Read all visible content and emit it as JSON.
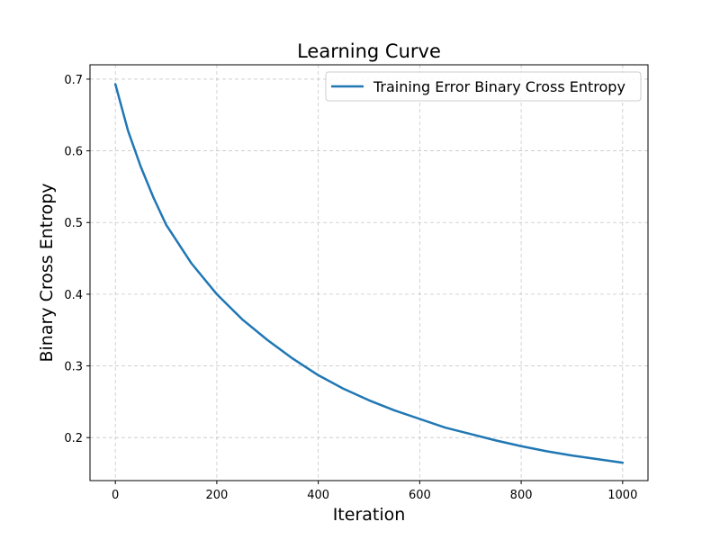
{
  "chart_data": {
    "type": "line",
    "title": "Learning Curve",
    "xlabel": "Iteration",
    "ylabel": "Binary Cross Entropy",
    "xlim": [
      -50,
      1050
    ],
    "ylim": [
      0.14,
      0.72
    ],
    "xticks": [
      0,
      200,
      400,
      600,
      800,
      1000
    ],
    "xtick_labels": [
      "0",
      "200",
      "400",
      "600",
      "800",
      "1000"
    ],
    "yticks": [
      0.2,
      0.3,
      0.4,
      0.5,
      0.6,
      0.7
    ],
    "ytick_labels": [
      "0.2",
      "0.3",
      "0.4",
      "0.5",
      "0.6",
      "0.7"
    ],
    "grid": true,
    "legend_position": "top-right",
    "series": [
      {
        "name": "Training Error Binary Cross Entropy",
        "color": "#1f77b4",
        "x": [
          0,
          25,
          50,
          75,
          100,
          150,
          200,
          250,
          300,
          350,
          400,
          450,
          500,
          550,
          600,
          650,
          700,
          750,
          800,
          850,
          900,
          950,
          1000
        ],
        "y": [
          0.693,
          0.628,
          0.578,
          0.535,
          0.497,
          0.443,
          0.4,
          0.365,
          0.336,
          0.31,
          0.287,
          0.268,
          0.252,
          0.238,
          0.226,
          0.214,
          0.205,
          0.196,
          0.188,
          0.181,
          0.175,
          0.17,
          0.165
        ]
      }
    ]
  }
}
